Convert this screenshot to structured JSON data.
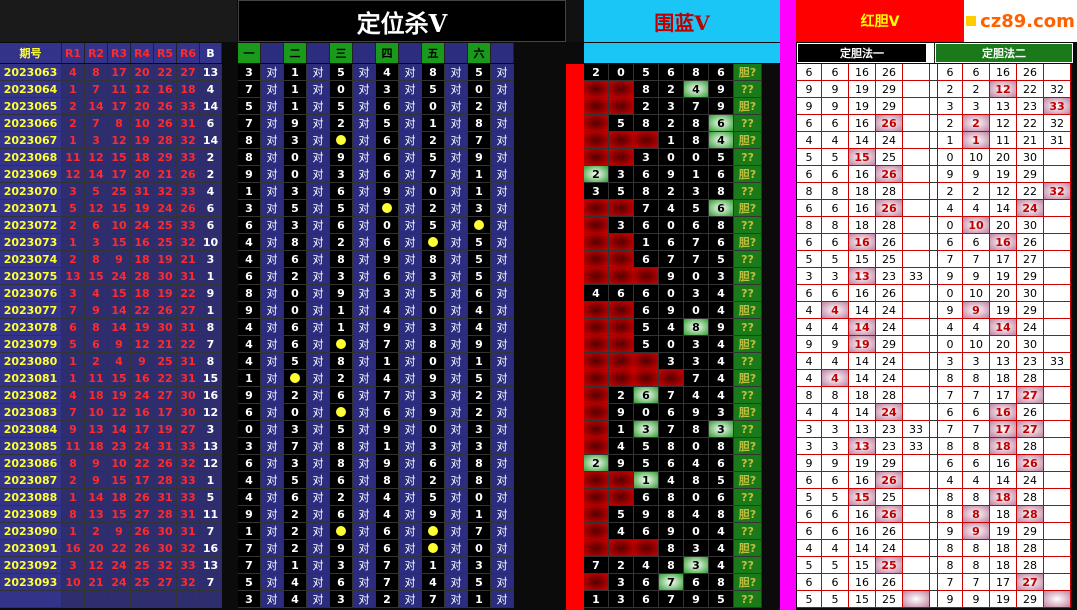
{
  "titles": {
    "dwsv": "定位杀V",
    "wl": "围蓝V",
    "hd": "红胆V",
    "logo": "cz89.com"
  },
  "sub": {
    "period": "期号",
    "r": [
      "R1",
      "R2",
      "R3",
      "R4",
      "R5",
      "R6"
    ],
    "b": "B",
    "dw": [
      "一",
      "",
      "二",
      "",
      "三",
      "",
      "四",
      "",
      "五",
      "",
      "六",
      ""
    ],
    "dd1": "定胆法一",
    "dd2": "定胆法二"
  },
  "rows": [
    {
      "p": "2023063",
      "n": [
        4,
        8,
        17,
        20,
        22,
        27
      ],
      "b": 13
    },
    {
      "p": "2023064",
      "n": [
        1,
        7,
        11,
        12,
        16,
        18
      ],
      "b": 4
    },
    {
      "p": "2023065",
      "n": [
        2,
        14,
        17,
        20,
        26,
        33
      ],
      "b": 14
    },
    {
      "p": "2023066",
      "n": [
        2,
        7,
        8,
        10,
        26,
        31
      ],
      "b": 6
    },
    {
      "p": "2023067",
      "n": [
        1,
        3,
        12,
        19,
        28,
        32
      ],
      "b": 14
    },
    {
      "p": "2023068",
      "n": [
        11,
        12,
        15,
        18,
        29,
        33
      ],
      "b": 2
    },
    {
      "p": "2023069",
      "n": [
        12,
        14,
        17,
        20,
        21,
        26
      ],
      "b": 2
    },
    {
      "p": "2023070",
      "n": [
        3,
        5,
        25,
        31,
        32,
        33
      ],
      "b": 4
    },
    {
      "p": "2023071",
      "n": [
        5,
        12,
        15,
        19,
        24,
        26
      ],
      "b": 6
    },
    {
      "p": "2023072",
      "n": [
        2,
        6,
        10,
        24,
        25,
        33
      ],
      "b": 6
    },
    {
      "p": "2023073",
      "n": [
        1,
        3,
        15,
        16,
        25,
        32
      ],
      "b": 10
    },
    {
      "p": "2023074",
      "n": [
        2,
        8,
        9,
        18,
        19,
        21
      ],
      "b": 3
    },
    {
      "p": "2023075",
      "n": [
        13,
        15,
        24,
        28,
        30,
        31
      ],
      "b": 1
    },
    {
      "p": "2023076",
      "n": [
        3,
        4,
        15,
        18,
        19,
        22
      ],
      "b": 9
    },
    {
      "p": "2023077",
      "n": [
        7,
        9,
        14,
        22,
        26,
        27
      ],
      "b": 1
    },
    {
      "p": "2023078",
      "n": [
        6,
        8,
        14,
        19,
        30,
        31
      ],
      "b": 8
    },
    {
      "p": "2023079",
      "n": [
        5,
        6,
        9,
        12,
        21,
        22
      ],
      "b": 7
    },
    {
      "p": "2023080",
      "n": [
        1,
        2,
        4,
        9,
        25,
        31
      ],
      "b": 8
    },
    {
      "p": "2023081",
      "n": [
        1,
        11,
        15,
        16,
        22,
        31
      ],
      "b": 15
    },
    {
      "p": "2023082",
      "n": [
        4,
        18,
        19,
        24,
        27,
        30
      ],
      "b": 16
    },
    {
      "p": "2023083",
      "n": [
        7,
        10,
        12,
        16,
        17,
        30
      ],
      "b": 12
    },
    {
      "p": "2023084",
      "n": [
        9,
        13,
        14,
        17,
        19,
        27
      ],
      "b": 3
    },
    {
      "p": "2023085",
      "n": [
        11,
        18,
        23,
        24,
        31,
        33
      ],
      "b": 13
    },
    {
      "p": "2023086",
      "n": [
        8,
        9,
        10,
        22,
        26,
        32
      ],
      "b": 12
    },
    {
      "p": "2023087",
      "n": [
        2,
        9,
        15,
        17,
        28,
        33
      ],
      "b": 1
    },
    {
      "p": "2023088",
      "n": [
        1,
        14,
        18,
        26,
        31,
        33
      ],
      "b": 5
    },
    {
      "p": "2023089",
      "n": [
        8,
        13,
        15,
        27,
        28,
        31
      ],
      "b": 11
    },
    {
      "p": "2023090",
      "n": [
        1,
        2,
        9,
        26,
        30,
        31
      ],
      "b": 7
    },
    {
      "p": "2023091",
      "n": [
        16,
        20,
        22,
        26,
        30,
        32
      ],
      "b": 16
    },
    {
      "p": "2023092",
      "n": [
        3,
        12,
        24,
        25,
        32,
        33
      ],
      "b": 13
    },
    {
      "p": "2023093",
      "n": [
        10,
        21,
        24,
        25,
        27,
        32
      ],
      "b": 7
    },
    {
      "p": "",
      "n": [
        "",
        "",
        "",
        "",
        "",
        ""
      ],
      "b": ""
    }
  ],
  "dw": [
    [
      3,
      1,
      5,
      4,
      8,
      5
    ],
    [
      7,
      1,
      0,
      3,
      5,
      0
    ],
    [
      5,
      1,
      5,
      6,
      0,
      2
    ],
    [
      7,
      9,
      2,
      5,
      1,
      8
    ],
    [
      8,
      3,
      "o",
      6,
      2,
      7
    ],
    [
      8,
      0,
      9,
      6,
      5,
      9
    ],
    [
      9,
      0,
      3,
      6,
      7,
      1
    ],
    [
      1,
      3,
      6,
      9,
      0,
      1
    ],
    [
      3,
      5,
      5,
      "o",
      2,
      3
    ],
    [
      6,
      3,
      6,
      0,
      5,
      "o"
    ],
    [
      4,
      8,
      2,
      6,
      "o",
      5
    ],
    [
      4,
      6,
      8,
      9,
      8,
      5
    ],
    [
      6,
      2,
      3,
      6,
      3,
      5
    ],
    [
      8,
      0,
      9,
      3,
      5,
      6
    ],
    [
      9,
      0,
      1,
      4,
      0,
      4
    ],
    [
      4,
      6,
      1,
      9,
      3,
      4
    ],
    [
      4,
      6,
      "o",
      7,
      8,
      9
    ],
    [
      4,
      5,
      8,
      1,
      0,
      1
    ],
    [
      1,
      "o",
      2,
      4,
      9,
      5
    ],
    [
      9,
      2,
      6,
      7,
      3,
      2
    ],
    [
      6,
      0,
      "o",
      6,
      9,
      2
    ],
    [
      0,
      3,
      5,
      9,
      0,
      3
    ],
    [
      3,
      7,
      8,
      1,
      3,
      3
    ],
    [
      6,
      3,
      8,
      9,
      6,
      8
    ],
    [
      4,
      5,
      6,
      8,
      2,
      8
    ],
    [
      4,
      6,
      2,
      4,
      5,
      0
    ],
    [
      9,
      2,
      6,
      4,
      9,
      1
    ],
    [
      1,
      2,
      "o",
      6,
      "o",
      7
    ],
    [
      7,
      2,
      9,
      6,
      "o",
      0
    ],
    [
      7,
      1,
      3,
      7,
      1,
      3
    ],
    [
      5,
      4,
      6,
      7,
      4,
      5
    ],
    [
      3,
      4,
      3,
      2,
      7,
      1
    ]
  ],
  "wl": [
    [
      "2",
      "0",
      "5",
      "6",
      "8",
      "6"
    ],
    [
      "x",
      "x",
      "8",
      "2",
      "4h",
      "9"
    ],
    [
      "x",
      "x",
      "2",
      "3",
      "7",
      "9"
    ],
    [
      "x",
      "5",
      "8",
      "2",
      "8",
      "6h"
    ],
    [
      "x",
      "x",
      "x",
      "1",
      "8",
      "4h"
    ],
    [
      "x",
      "x",
      "3",
      "0",
      "0",
      "5"
    ],
    [
      "2h",
      "3",
      "6",
      "9",
      "1",
      "6"
    ],
    [
      "3",
      "5",
      "8",
      "2",
      "3",
      "8"
    ],
    [
      "x",
      "x",
      "7",
      "4",
      "5",
      "6h"
    ],
    [
      "x",
      "3",
      "6",
      "0",
      "6",
      "8"
    ],
    [
      "x",
      "x",
      "1",
      "6",
      "7",
      "6"
    ],
    [
      "x",
      "x",
      "6",
      "7",
      "7",
      "5"
    ],
    [
      "x",
      "x",
      "x",
      "9",
      "0",
      "3"
    ],
    [
      "4",
      "6",
      "6",
      "0",
      "3",
      "4"
    ],
    [
      "x",
      "x",
      "6",
      "9",
      "0",
      "4"
    ],
    [
      "x",
      "x",
      "5",
      "4",
      "8h",
      "9"
    ],
    [
      "x",
      "x",
      "5",
      "0",
      "3",
      "4"
    ],
    [
      "x",
      "x",
      "x",
      "3",
      "3",
      "4"
    ],
    [
      "x",
      "x",
      "x",
      "x",
      "7",
      "4"
    ],
    [
      "x",
      "2",
      "6h",
      "7",
      "4",
      "4"
    ],
    [
      "x",
      "9",
      "0",
      "6",
      "9",
      "3"
    ],
    [
      "x",
      "1",
      "3h",
      "7",
      "8",
      "3h"
    ],
    [
      "x",
      "4",
      "5",
      "8",
      "0",
      "8"
    ],
    [
      "2h",
      "9",
      "5",
      "6",
      "4",
      "6"
    ],
    [
      "x",
      "x",
      "1h",
      "4",
      "8",
      "5"
    ],
    [
      "x",
      "x",
      "6",
      "8",
      "0",
      "6"
    ],
    [
      "x",
      "5",
      "9",
      "8",
      "4",
      "8"
    ],
    [
      "x",
      "4",
      "6",
      "9",
      "0",
      "4"
    ],
    [
      "x",
      "x",
      "x",
      "8",
      "3",
      "4"
    ],
    [
      "7",
      "2",
      "4",
      "8",
      "3h",
      "4"
    ],
    [
      "x",
      "3",
      "6",
      "7h",
      "6",
      "8"
    ],
    [
      "1",
      "3",
      "6",
      "7",
      "9",
      "5"
    ]
  ],
  "dd1": [
    [
      "6",
      "6",
      "16",
      "26",
      ""
    ],
    [
      "9",
      "9",
      "19",
      "29",
      ""
    ],
    [
      "9",
      "9",
      "19",
      "29",
      ""
    ],
    [
      "6",
      "6",
      "16",
      "26h",
      ""
    ],
    [
      "4",
      "4",
      "14",
      "24",
      ""
    ],
    [
      "5",
      "5",
      "15h",
      "25",
      ""
    ],
    [
      "6",
      "6",
      "16",
      "26h",
      ""
    ],
    [
      "8",
      "8",
      "18",
      "28",
      ""
    ],
    [
      "6",
      "6",
      "16",
      "26h",
      ""
    ],
    [
      "8",
      "8",
      "18",
      "28",
      ""
    ],
    [
      "6",
      "6",
      "16h",
      "26",
      ""
    ],
    [
      "5",
      "5",
      "15",
      "25",
      ""
    ],
    [
      "3",
      "3",
      "13h",
      "23",
      "33"
    ],
    [
      "6",
      "6",
      "16",
      "26",
      ""
    ],
    [
      "4",
      "4h",
      "14",
      "24",
      ""
    ],
    [
      "4",
      "4",
      "14h",
      "24",
      ""
    ],
    [
      "9",
      "9",
      "19h",
      "29",
      ""
    ],
    [
      "4",
      "4",
      "14",
      "24",
      ""
    ],
    [
      "4",
      "4h",
      "14",
      "24",
      ""
    ],
    [
      "8",
      "8",
      "18",
      "28",
      ""
    ],
    [
      "4",
      "4",
      "14",
      "24h",
      ""
    ],
    [
      "3",
      "3",
      "13",
      "23",
      "33"
    ],
    [
      "3",
      "3",
      "13h",
      "23",
      "33"
    ],
    [
      "9",
      "9",
      "19",
      "29",
      ""
    ],
    [
      "6",
      "6",
      "16",
      "26h",
      ""
    ],
    [
      "5",
      "5",
      "15h",
      "25",
      ""
    ],
    [
      "6",
      "6",
      "16",
      "26h",
      ""
    ],
    [
      "6",
      "6",
      "16",
      "26",
      ""
    ],
    [
      "4",
      "4",
      "14",
      "24",
      ""
    ],
    [
      "5",
      "5",
      "15",
      "25h",
      ""
    ],
    [
      "6",
      "6",
      "16",
      "26",
      ""
    ],
    [
      "5",
      "5",
      "15",
      "25",
      "h"
    ]
  ],
  "dd2": [
    [
      "6",
      "6",
      "16",
      "26",
      ""
    ],
    [
      "2",
      "2",
      "12h",
      "22",
      "32"
    ],
    [
      "3",
      "3",
      "13",
      "23",
      "33h"
    ],
    [
      "2",
      "2h",
      "12",
      "22",
      "32"
    ],
    [
      "1",
      "1h",
      "11",
      "21",
      "31"
    ],
    [
      "0",
      "10",
      "20",
      "30",
      ""
    ],
    [
      "9",
      "9",
      "19",
      "29",
      ""
    ],
    [
      "2",
      "2",
      "12",
      "22",
      "32h"
    ],
    [
      "4",
      "4",
      "14",
      "24h",
      ""
    ],
    [
      "0",
      "10h",
      "20",
      "30",
      ""
    ],
    [
      "6",
      "6",
      "16h",
      "26",
      ""
    ],
    [
      "7",
      "7",
      "17",
      "27",
      ""
    ],
    [
      "9",
      "9",
      "19",
      "29",
      ""
    ],
    [
      "0",
      "10",
      "20",
      "30",
      ""
    ],
    [
      "9",
      "9h",
      "19",
      "29",
      ""
    ],
    [
      "4",
      "4",
      "14h",
      "24",
      ""
    ],
    [
      "0",
      "10",
      "20",
      "30",
      ""
    ],
    [
      "3",
      "3",
      "13",
      "23",
      "33"
    ],
    [
      "8",
      "8",
      "18",
      "28",
      ""
    ],
    [
      "7",
      "7",
      "17",
      "27h",
      ""
    ],
    [
      "6",
      "6",
      "16h",
      "26",
      ""
    ],
    [
      "7",
      "7",
      "17h",
      "27h",
      ""
    ],
    [
      "8",
      "8",
      "18h",
      "28",
      ""
    ],
    [
      "6",
      "6",
      "16",
      "26h",
      ""
    ],
    [
      "4",
      "4",
      "14",
      "24",
      ""
    ],
    [
      "8",
      "8",
      "18h",
      "28",
      ""
    ],
    [
      "8",
      "8h",
      "18",
      "28h",
      ""
    ],
    [
      "9",
      "9h",
      "19",
      "29",
      ""
    ],
    [
      "8",
      "8",
      "18",
      "28",
      ""
    ],
    [
      "8",
      "8",
      "18",
      "28",
      ""
    ],
    [
      "7",
      "7",
      "17",
      "27h",
      ""
    ],
    [
      "9",
      "9",
      "19",
      "29",
      "h"
    ]
  ],
  "pair_label": "对",
  "wl_side": [
    "胆?",
    "??"
  ]
}
